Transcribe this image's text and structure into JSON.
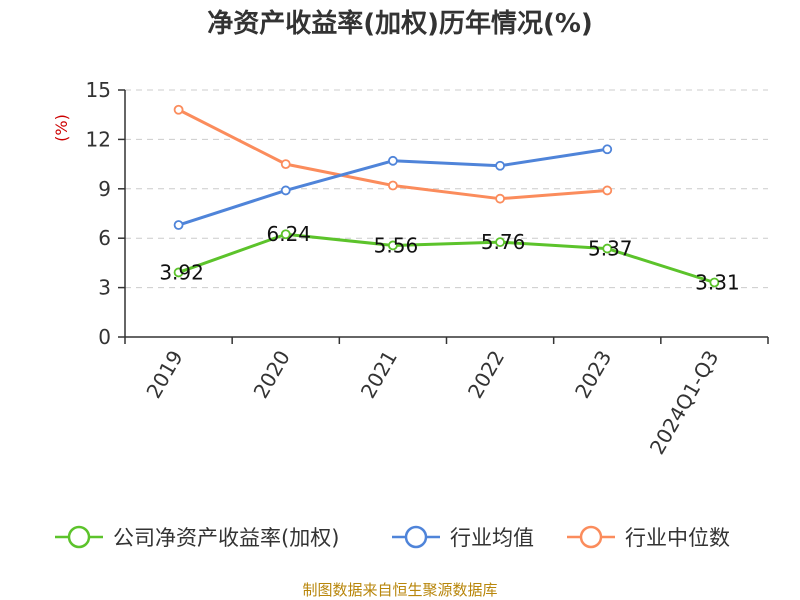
{
  "chart_data": {
    "type": "line",
    "title": "净资产收益率(加权)历年情况(%)",
    "ylabel": "(%)",
    "xlabel": "",
    "ylim": [
      0,
      15
    ],
    "yticks": [
      0,
      3,
      6,
      9,
      12,
      15
    ],
    "grid": true,
    "categories": [
      "2019",
      "2020",
      "2021",
      "2022",
      "2023",
      "2024Q1-Q3"
    ],
    "series": [
      {
        "name": "公司净资产收益率(加权)",
        "color": "#5cc32b",
        "values": [
          3.92,
          6.24,
          5.56,
          5.76,
          5.37,
          3.31
        ],
        "labels": [
          "3.92",
          "6.24",
          "5.56",
          "5.76",
          "5.37",
          "3.31"
        ]
      },
      {
        "name": "行业均值",
        "color": "#4f84d9",
        "values": [
          6.8,
          8.9,
          10.7,
          10.4,
          11.4,
          null
        ]
      },
      {
        "name": "行业中位数",
        "color": "#fb8c5c",
        "values": [
          13.8,
          10.5,
          9.2,
          8.4,
          8.9,
          null
        ]
      }
    ],
    "legend_position": "bottom"
  },
  "footer": {
    "source": "制图数据来自恒生聚源数据库"
  },
  "colors": {
    "grid": "#cccccc",
    "axis": "#333333",
    "source": "#b8860b"
  }
}
